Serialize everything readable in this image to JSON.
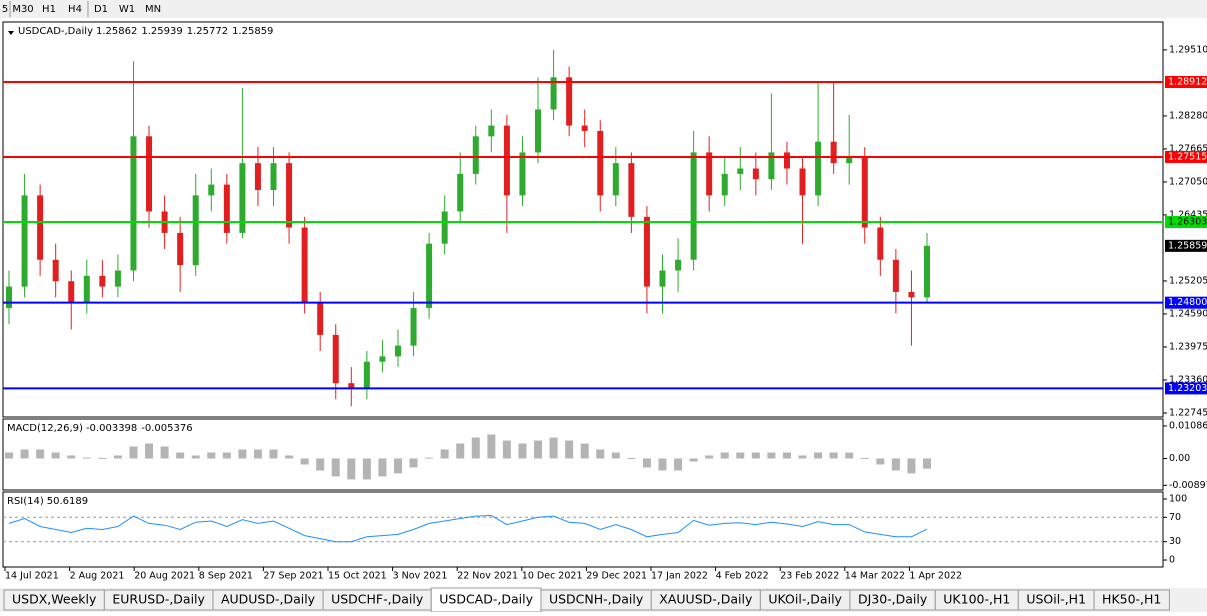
{
  "toolbar": [
    "5",
    "M30",
    "H1",
    "H4",
    "D1",
    "W1",
    "MN"
  ],
  "tabs": [
    "USDX,Weekly",
    "EURUSD-,Daily",
    "AUDUSD-,Daily",
    "USDCHF-,Daily",
    "USDCAD-,Daily",
    "USDCNH-,Daily",
    "XAUUSD-,Daily",
    "UKOil-,Daily",
    "DJ30-,Daily",
    "UK100-,H1",
    "USOil-,H1",
    "HK50-,H1"
  ],
  "active_tab": 4,
  "chart_data": [
    {
      "type": "candlestick",
      "title": "USDCAD-,Daily",
      "header_values": [
        1.25862,
        1.25939,
        1.25772,
        1.25859
      ],
      "categories": [
        "14 Jul 2021",
        "2 Aug 2021",
        "20 Aug 2021",
        "8 Sep 2021",
        "27 Sep 2021",
        "15 Oct 2021",
        "3 Nov 2021",
        "22 Nov 2021",
        "10 Dec 2021",
        "29 Dec 2021",
        "17 Jan 2022",
        "4 Feb 2022",
        "23 Feb 2022",
        "14 Mar 2022",
        "1 Apr 2022"
      ],
      "open": [
        1.247,
        1.251,
        1.268,
        1.256,
        1.252,
        1.248,
        1.253,
        1.251,
        1.254,
        1.279,
        1.265,
        1.261,
        1.255,
        1.268,
        1.27,
        1.261,
        1.274,
        1.269,
        1.274,
        1.262,
        1.248,
        1.242,
        1.233,
        1.232,
        1.237,
        1.238,
        1.24,
        1.247,
        1.259,
        1.265,
        1.272,
        1.279,
        1.281,
        1.268,
        1.276,
        1.284,
        1.29,
        1.281,
        1.28,
        1.268,
        1.274,
        1.264,
        1.251,
        1.254,
        1.256,
        1.276,
        1.268,
        1.272,
        1.273,
        1.271,
        1.276,
        1.273,
        1.268,
        1.278,
        1.274,
        1.275,
        1.262,
        1.256,
        1.25,
        1.249
      ],
      "high": [
        1.254,
        1.272,
        1.27,
        1.259,
        1.254,
        1.256,
        1.256,
        1.257,
        1.293,
        1.281,
        1.268,
        1.264,
        1.272,
        1.273,
        1.272,
        1.288,
        1.277,
        1.277,
        1.276,
        1.264,
        1.25,
        1.244,
        1.236,
        1.239,
        1.241,
        1.243,
        1.25,
        1.261,
        1.268,
        1.276,
        1.281,
        1.284,
        1.283,
        1.279,
        1.29,
        1.2951,
        1.292,
        1.284,
        1.282,
        1.277,
        1.276,
        1.266,
        1.257,
        1.26,
        1.28,
        1.279,
        1.275,
        1.277,
        1.276,
        1.287,
        1.278,
        1.275,
        1.289,
        1.289,
        1.283,
        1.277,
        1.264,
        1.258,
        1.254,
        1.261
      ],
      "low": [
        1.244,
        1.249,
        1.253,
        1.249,
        1.243,
        1.246,
        1.249,
        1.249,
        1.252,
        1.262,
        1.258,
        1.25,
        1.253,
        1.265,
        1.259,
        1.26,
        1.266,
        1.266,
        1.259,
        1.246,
        1.239,
        1.23,
        1.2287,
        1.23,
        1.235,
        1.236,
        1.238,
        1.245,
        1.257,
        1.263,
        1.27,
        1.276,
        1.261,
        1.266,
        1.274,
        1.282,
        1.279,
        1.277,
        1.265,
        1.266,
        1.261,
        1.246,
        1.246,
        1.25,
        1.254,
        1.265,
        1.266,
        1.269,
        1.268,
        1.269,
        1.27,
        1.259,
        1.266,
        1.272,
        1.27,
        1.259,
        1.253,
        1.246,
        1.24,
        1.248
      ],
      "close": [
        1.251,
        1.268,
        1.256,
        1.252,
        1.248,
        1.253,
        1.251,
        1.254,
        1.279,
        1.265,
        1.261,
        1.255,
        1.268,
        1.27,
        1.261,
        1.274,
        1.269,
        1.274,
        1.262,
        1.248,
        1.242,
        1.233,
        1.232,
        1.237,
        1.238,
        1.24,
        1.247,
        1.259,
        1.265,
        1.272,
        1.279,
        1.281,
        1.268,
        1.276,
        1.284,
        1.29,
        1.281,
        1.28,
        1.268,
        1.274,
        1.264,
        1.251,
        1.254,
        1.256,
        1.276,
        1.268,
        1.272,
        1.273,
        1.271,
        1.276,
        1.273,
        1.268,
        1.278,
        1.274,
        1.275,
        1.262,
        1.256,
        1.25,
        1.249,
        1.2586
      ],
      "up_color": "#2eaa2e",
      "down_color": "#e02020",
      "ylim": [
        1.2267,
        1.3003
      ],
      "yticks": [
        {
          "value": 1.2951,
          "label": "1.29510"
        },
        {
          "value": 1.2828,
          "label": "1.28280"
        },
        {
          "value": 1.27665,
          "label": "1.27665"
        },
        {
          "value": 1.2705,
          "label": "1.27050"
        },
        {
          "value": 1.26435,
          "label": "1.26435"
        },
        {
          "value": 1.25205,
          "label": "1.25205"
        },
        {
          "value": 1.2459,
          "label": "1.24590"
        },
        {
          "value": 1.23975,
          "label": "1.23975"
        },
        {
          "value": 1.2336,
          "label": "1.23360"
        },
        {
          "value": 1.22745,
          "label": "1.22745"
        }
      ],
      "levels": [
        {
          "value": 1.28912,
          "color": "#ff0000"
        },
        {
          "value": 1.27515,
          "color": "#ff0000"
        },
        {
          "value": 1.26303,
          "color": "#00dd00"
        },
        {
          "value": {
            "value": 1.248,
            "label": "1.24800"
          },
          "color": "#0000ff"
        },
        {
          "value": 1.23203,
          "color": "#0000ff"
        }
      ],
      "last_price": 1.25859
    },
    {
      "type": "bar",
      "title": "MACD(12,26,9)",
      "header_values": [
        -0.003398,
        -0.005376
      ],
      "color": "#b4b4b4",
      "values": [
        0.002,
        0.003,
        0.003,
        0.002,
        0.001,
        0.0003,
        0.0002,
        0.001,
        0.004,
        0.005,
        0.004,
        0.002,
        0.001,
        0.002,
        0.002,
        0.003,
        0.003,
        0.003,
        0.001,
        -0.002,
        -0.004,
        -0.006,
        -0.007,
        -0.007,
        -0.006,
        -0.005,
        -0.003,
        0.0003,
        0.003,
        0.005,
        0.007,
        0.008,
        0.006,
        0.005,
        0.006,
        0.007,
        0.006,
        0.005,
        0.003,
        0.002,
        0.0002,
        -0.003,
        -0.004,
        -0.004,
        -0.001,
        0.001,
        0.002,
        0.002,
        0.002,
        0.002,
        0.002,
        0.001,
        0.002,
        0.002,
        0.002,
        0.0002,
        -0.002,
        -0.004,
        -0.005,
        -0.003398
      ],
      "ylim": [
        -0.01054,
        0.0132
      ],
      "yticks": [
        0.010869,
        {
          "value": 0,
          "label": "0.00"
        },
        -0.008974
      ]
    },
    {
      "type": "line",
      "title": "RSI(14)",
      "header_values": [
        50.6189
      ],
      "color": "#1e90ff",
      "values": [
        60,
        68,
        55,
        50,
        45,
        52,
        50,
        55,
        72,
        60,
        57,
        50,
        62,
        64,
        55,
        66,
        60,
        64,
        52,
        40,
        35,
        30,
        30,
        38,
        40,
        42,
        50,
        60,
        64,
        68,
        72,
        73,
        58,
        64,
        70,
        72,
        62,
        60,
        50,
        58,
        50,
        38,
        42,
        45,
        65,
        57,
        60,
        61,
        58,
        62,
        59,
        55,
        63,
        58,
        58,
        46,
        42,
        38,
        38,
        50.6189
      ],
      "ylim": [
        -11.5,
        111.5
      ],
      "yticks": [
        100,
        70,
        30,
        0
      ]
    }
  ]
}
